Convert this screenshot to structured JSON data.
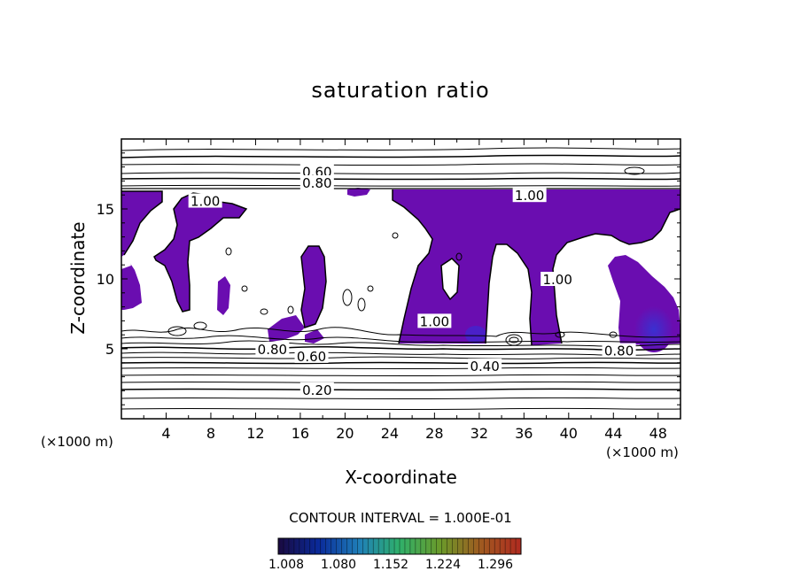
{
  "chart_data": {
    "type": "contour",
    "title": "saturation ratio",
    "xlabel": "X-coordinate",
    "ylabel": "Z-coordinate",
    "x_unit_left": "(×1000 m)",
    "x_unit_right": "(×1000 m)",
    "xlim": [
      0,
      50
    ],
    "ylim": [
      0,
      20
    ],
    "x_ticks": [
      4,
      8,
      12,
      16,
      20,
      24,
      28,
      32,
      36,
      40,
      44,
      48
    ],
    "y_ticks": [
      5,
      10,
      15
    ],
    "contour_labels": [
      {
        "text": "0.60",
        "x": 17.5,
        "z": 17.7
      },
      {
        "text": "0.80",
        "x": 17.5,
        "z": 16.9
      },
      {
        "text": "1.00",
        "x": 7.5,
        "z": 15.6
      },
      {
        "text": "1.00",
        "x": 36.5,
        "z": 16.0
      },
      {
        "text": "1.00",
        "x": 39,
        "z": 10.0
      },
      {
        "text": "1.00",
        "x": 28,
        "z": 7.0
      },
      {
        "text": "0.80",
        "x": 13.5,
        "z": 5.0
      },
      {
        "text": "0.60",
        "x": 17,
        "z": 4.5
      },
      {
        "text": "0.40",
        "x": 32.5,
        "z": 3.8
      },
      {
        "text": "0.80",
        "x": 44.5,
        "z": 4.9
      },
      {
        "text": "0.20",
        "x": 17.5,
        "z": 2.1
      }
    ],
    "contour_interval_text": "CONTOUR INTERVAL = 1.000E-01",
    "colorbar": {
      "labels": [
        "1.008",
        "1.080",
        "1.152",
        "1.224",
        "1.296"
      ],
      "colors": [
        "#1a0a40",
        "#0a2a9a",
        "#1f7fb8",
        "#2fb06a",
        "#6a9a2a",
        "#a05a20",
        "#b02a20"
      ]
    },
    "fill_color": "#6a0db0"
  }
}
